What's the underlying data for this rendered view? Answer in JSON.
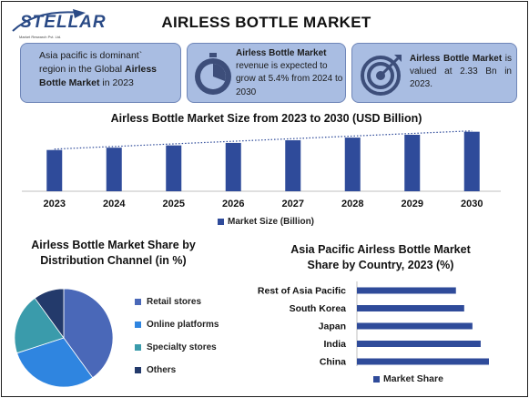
{
  "logo": {
    "name": "STELLAR",
    "subtext": "Market Research Pvt. Ltd."
  },
  "title": "AIRLESS BOTTLE MARKET",
  "cards": {
    "c1": {
      "pre": "Asia pacific is dominant` region in the Global ",
      "bold": "Airless Bottle Market",
      "post": " in 2023"
    },
    "c2": {
      "bold": "Airless Bottle Market",
      "post": " revenue is expected to grow at 5.4% from 2024 to 2030"
    },
    "c3": {
      "bold": "Airless Bottle Market",
      "post": " is valued at 2.33 Bn in 2023."
    }
  },
  "icons": {
    "c2": "stopwatch-icon",
    "c3": "target-icon"
  },
  "colors": {
    "accent": "#2f4b9a",
    "card": "#a9bde2",
    "pie_retail": "#4a68b8",
    "pie_online": "#2f85e0",
    "pie_specialty": "#3a9bab",
    "pie_others": "#233a6b"
  },
  "chart_data": [
    {
      "type": "bar",
      "title": "Airless Bottle Market Size from 2023 to 2030 (USD Billion)",
      "categories": [
        "2023",
        "2024",
        "2025",
        "2026",
        "2027",
        "2028",
        "2029",
        "2030"
      ],
      "series": [
        {
          "name": "Market Size (Billion)",
          "values": [
            2.33,
            2.46,
            2.59,
            2.73,
            2.88,
            3.03,
            3.19,
            3.36
          ]
        }
      ],
      "trendline": true,
      "ylim": [
        0,
        3.6
      ]
    },
    {
      "type": "pie",
      "title": "Airless Bottle Market Share by Distribution Channel (in %)",
      "labels": [
        "Retail stores",
        "Online platforms",
        "Specialty stores",
        "Others"
      ],
      "values": [
        40,
        30,
        20,
        10
      ]
    },
    {
      "type": "bar",
      "orientation": "horizontal",
      "title": "Asia Pacific Airless Bottle Market Share by Country, 2023 (%)",
      "categories": [
        "Rest of Asia Pacific",
        "South Korea",
        "Japan",
        "India",
        "China"
      ],
      "series": [
        {
          "name": "Market Share",
          "values": [
            24,
            26,
            28,
            30,
            32
          ]
        }
      ]
    }
  ]
}
